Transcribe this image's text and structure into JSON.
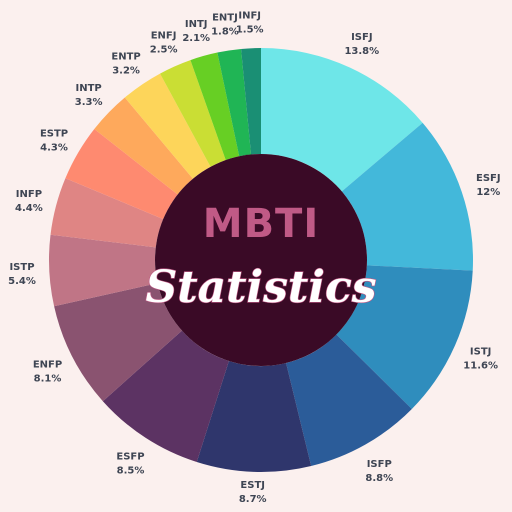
{
  "chart_data": {
    "type": "pie",
    "style": "donut",
    "title": "MBTI",
    "subtitle": "Statistics",
    "categories": [
      "ISFJ",
      "ESFJ",
      "ISTJ",
      "ISFP",
      "ESTJ",
      "ESFP",
      "ENFP",
      "ISTP",
      "INFP",
      "ESTP",
      "INTP",
      "ENTP",
      "ENFJ",
      "INTJ",
      "ENTJ",
      "INFJ"
    ],
    "values": [
      13.8,
      12,
      11.6,
      8.8,
      8.7,
      8.5,
      8.1,
      5.4,
      4.4,
      4.3,
      3.3,
      3.2,
      2.5,
      2.1,
      1.8,
      1.5
    ],
    "value_labels": [
      "13.8%",
      "12%",
      "11.6%",
      "8.8%",
      "8.7%",
      "8.5%",
      "8.1%",
      "5.4%",
      "4.4%",
      "4.3%",
      "3.3%",
      "3.2%",
      "2.5%",
      "2.1%",
      "1.8%",
      "1.5%"
    ],
    "colors": [
      "#6ee6e8",
      "#43b8da",
      "#2f8dbd",
      "#2b5c99",
      "#2f366c",
      "#5c3363",
      "#8a5370",
      "#c07586",
      "#df8584",
      "#fe8a70",
      "#fea95c",
      "#fdd55a",
      "#cade34",
      "#67cf24",
      "#20b555",
      "#1a8f74"
    ],
    "center_color": "#3a0a26",
    "start": "12 o'clock",
    "direction": "clockwise"
  }
}
